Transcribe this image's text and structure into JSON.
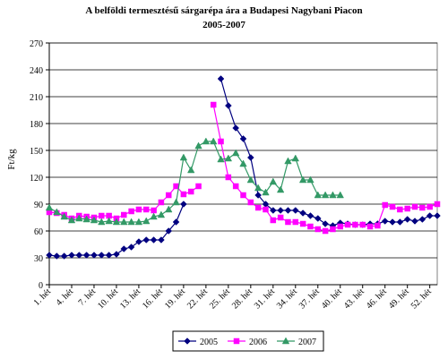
{
  "chart_data": {
    "type": "line",
    "title_line1": "A belföldi termesztésű sárgarépa ára a Budapesi Nagybani Piacon",
    "title_line2": "2005-2007",
    "ylabel": "Ft/kg",
    "xlabel": "",
    "ylim": [
      0,
      270
    ],
    "yticks": [
      0,
      30,
      60,
      90,
      120,
      150,
      180,
      210,
      240,
      270
    ],
    "xlim": [
      1,
      53
    ],
    "xtick_labels": [
      "1. hét",
      "4. hét",
      "7. hét",
      "10. hét",
      "13. hét",
      "16. hét",
      "19. hét",
      "22. hét",
      "25. hét",
      "28. hét",
      "31. hét",
      "34. hét",
      "37. hét",
      "40. hét",
      "43. hét",
      "46. hét",
      "49. hét",
      "52. hét"
    ],
    "xtick_weeks": [
      1,
      4,
      7,
      10,
      13,
      16,
      19,
      22,
      25,
      28,
      31,
      34,
      37,
      40,
      43,
      46,
      49,
      52
    ],
    "grid": true,
    "legend_position": "bottom",
    "series": [
      {
        "name": "2005",
        "color": "#000080",
        "marker": "diamond",
        "points": [
          [
            1,
            33
          ],
          [
            2,
            32
          ],
          [
            3,
            32
          ],
          [
            4,
            33
          ],
          [
            5,
            33
          ],
          [
            6,
            33
          ],
          [
            7,
            33
          ],
          [
            8,
            33
          ],
          [
            9,
            33
          ],
          [
            10,
            34
          ],
          [
            11,
            40
          ],
          [
            12,
            42
          ],
          [
            13,
            48
          ],
          [
            14,
            50
          ],
          [
            15,
            50
          ],
          [
            16,
            50
          ],
          [
            17,
            60
          ],
          [
            18,
            70
          ],
          [
            19,
            90
          ],
          [
            24,
            230
          ],
          [
            25,
            200
          ],
          [
            26,
            175
          ],
          [
            27,
            163
          ],
          [
            28,
            142
          ],
          [
            29,
            100
          ],
          [
            30,
            90
          ],
          [
            31,
            83
          ],
          [
            32,
            83
          ],
          [
            33,
            83
          ],
          [
            34,
            83
          ],
          [
            35,
            80
          ],
          [
            36,
            77
          ],
          [
            37,
            74
          ],
          [
            38,
            68
          ],
          [
            39,
            66
          ],
          [
            40,
            69
          ],
          [
            41,
            68
          ],
          [
            42,
            67
          ],
          [
            43,
            67
          ],
          [
            44,
            68
          ],
          [
            45,
            68
          ],
          [
            46,
            71
          ],
          [
            47,
            70
          ],
          [
            48,
            70
          ],
          [
            49,
            73
          ],
          [
            50,
            71
          ],
          [
            51,
            73
          ],
          [
            52,
            77
          ],
          [
            53,
            77
          ]
        ]
      },
      {
        "name": "2006",
        "color": "#FF00FF",
        "marker": "square",
        "points": [
          [
            1,
            81
          ],
          [
            2,
            80
          ],
          [
            3,
            78
          ],
          [
            4,
            74
          ],
          [
            5,
            77
          ],
          [
            6,
            76
          ],
          [
            7,
            75
          ],
          [
            8,
            77
          ],
          [
            9,
            77
          ],
          [
            10,
            74
          ],
          [
            11,
            78
          ],
          [
            12,
            82
          ],
          [
            13,
            84
          ],
          [
            14,
            84
          ],
          [
            15,
            83
          ],
          [
            16,
            92
          ],
          [
            17,
            100
          ],
          [
            18,
            110
          ],
          [
            19,
            101
          ],
          [
            20,
            104
          ],
          [
            21,
            110
          ],
          [
            23,
            201
          ],
          [
            24,
            160
          ],
          [
            25,
            120
          ],
          [
            26,
            110
          ],
          [
            27,
            100
          ],
          [
            28,
            92
          ],
          [
            29,
            86
          ],
          [
            30,
            84
          ],
          [
            31,
            72
          ],
          [
            32,
            75
          ],
          [
            33,
            70
          ],
          [
            34,
            70
          ],
          [
            35,
            68
          ],
          [
            36,
            65
          ],
          [
            37,
            62
          ],
          [
            38,
            60
          ],
          [
            39,
            62
          ],
          [
            40,
            65
          ],
          [
            41,
            67
          ],
          [
            42,
            67
          ],
          [
            43,
            67
          ],
          [
            44,
            65
          ],
          [
            45,
            66
          ],
          [
            46,
            89
          ],
          [
            47,
            87
          ],
          [
            48,
            84
          ],
          [
            49,
            85
          ],
          [
            50,
            87
          ],
          [
            51,
            86
          ],
          [
            52,
            87
          ],
          [
            53,
            90
          ]
        ]
      },
      {
        "name": "2007",
        "color": "#339966",
        "marker": "triangle",
        "points": [
          [
            1,
            86
          ],
          [
            2,
            81
          ],
          [
            3,
            76
          ],
          [
            4,
            72
          ],
          [
            5,
            74
          ],
          [
            6,
            73
          ],
          [
            7,
            72
          ],
          [
            8,
            70
          ],
          [
            9,
            71
          ],
          [
            10,
            70
          ],
          [
            11,
            70
          ],
          [
            12,
            70
          ],
          [
            13,
            70
          ],
          [
            14,
            71
          ],
          [
            15,
            76
          ],
          [
            16,
            78
          ],
          [
            17,
            84
          ],
          [
            18,
            92
          ],
          [
            19,
            142
          ],
          [
            20,
            128
          ],
          [
            21,
            155
          ],
          [
            22,
            160
          ],
          [
            23,
            160
          ],
          [
            24,
            140
          ],
          [
            25,
            141
          ],
          [
            26,
            147
          ],
          [
            27,
            135
          ],
          [
            28,
            117
          ],
          [
            29,
            108
          ],
          [
            30,
            103
          ],
          [
            31,
            115
          ],
          [
            32,
            106
          ],
          [
            33,
            138
          ],
          [
            34,
            141
          ],
          [
            35,
            117
          ],
          [
            36,
            117
          ],
          [
            37,
            100
          ],
          [
            38,
            100
          ],
          [
            39,
            100
          ],
          [
            40,
            100
          ]
        ]
      }
    ]
  }
}
